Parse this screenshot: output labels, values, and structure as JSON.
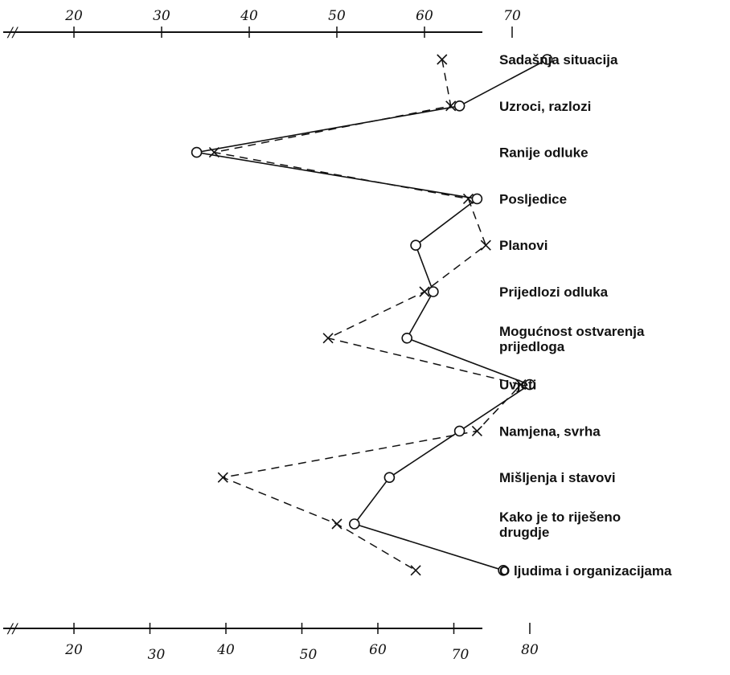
{
  "chart_data": {
    "type": "line",
    "title": "",
    "xlabel": "",
    "ylabel": "",
    "categories": [
      "Sadašnja situacija",
      "Uzroci, razlozi",
      "Ranije odluke",
      "Posljedice",
      "Planovi",
      "Prijedlozi odluka",
      "Mogućnost ostvarenja prijedloga",
      "Uvjeti",
      "Namjena, svrha",
      "Mišljenja i stavovi",
      "Kako je to riješeno drugdje",
      "O ljudima i organizacijama"
    ],
    "category_lines": [
      [
        "Sadašnja situacija"
      ],
      [
        "Uzroci, razlozi"
      ],
      [
        "Ranije odluke"
      ],
      [
        "Posljedice"
      ],
      [
        "Planovi"
      ],
      [
        "Prijedlozi odluka"
      ],
      [
        "Mogućnost ostvarenja",
        "prijedloga"
      ],
      [
        "Uvjeti"
      ],
      [
        "Namjena, svrha"
      ],
      [
        "Mišljenja i stavovi"
      ],
      [
        "Kako je to riješeno",
        "drugdje"
      ],
      [
        "O ljudima i organizacijama"
      ]
    ],
    "series": [
      {
        "style": "solid",
        "marker": "circle",
        "values": [
          74,
          64,
          34,
          66,
          59,
          61,
          58,
          72,
          64,
          56,
          52,
          69
        ]
      },
      {
        "style": "dashed",
        "marker": "x",
        "values": [
          62,
          63,
          36,
          65,
          67,
          60,
          49,
          71,
          66,
          37,
          50,
          59
        ]
      }
    ],
    "top_axis": {
      "ticks": [
        "20",
        "30",
        "40",
        "50",
        "60",
        "70"
      ],
      "xlim": [
        15,
        78
      ]
    },
    "bottom_axis": {
      "ticks": [
        "20",
        "30",
        "40",
        "50",
        "60",
        "70",
        "80"
      ],
      "xlim": [
        12,
        85
      ]
    },
    "axis_break": "//",
    "grid": false,
    "colors": {
      "ink": "#111111",
      "background": "#ffffff"
    }
  }
}
